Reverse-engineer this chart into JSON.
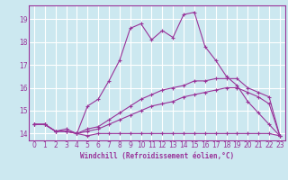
{
  "xlabel": "Windchill (Refroidissement éolien,°C)",
  "bg_color": "#cce8f0",
  "grid_color": "#ffffff",
  "line_color": "#993399",
  "xlim": [
    -0.5,
    23.5
  ],
  "ylim": [
    13.7,
    19.6
  ],
  "yticks": [
    14,
    15,
    16,
    17,
    18,
    19
  ],
  "xticks": [
    0,
    1,
    2,
    3,
    4,
    5,
    6,
    7,
    8,
    9,
    10,
    11,
    12,
    13,
    14,
    15,
    16,
    17,
    18,
    19,
    20,
    21,
    22,
    23
  ],
  "line1_x": [
    0,
    1,
    2,
    3,
    4,
    5,
    6,
    7,
    8,
    9,
    10,
    11,
    12,
    13,
    14,
    15,
    16,
    17,
    18,
    19,
    20,
    21,
    22,
    23
  ],
  "line1_y": [
    14.4,
    14.4,
    14.1,
    14.1,
    14.0,
    13.9,
    14.0,
    14.0,
    14.0,
    14.0,
    14.0,
    14.0,
    14.0,
    14.0,
    14.0,
    14.0,
    14.0,
    14.0,
    14.0,
    14.0,
    14.0,
    14.0,
    14.0,
    13.9
  ],
  "line2_x": [
    0,
    1,
    2,
    3,
    4,
    5,
    6,
    7,
    8,
    9,
    10,
    11,
    12,
    13,
    14,
    15,
    16,
    17,
    18,
    19,
    20,
    21,
    22,
    23
  ],
  "line2_y": [
    14.4,
    14.4,
    14.1,
    14.1,
    14.0,
    15.2,
    15.5,
    16.3,
    17.2,
    18.6,
    18.8,
    18.1,
    18.5,
    18.2,
    19.2,
    19.3,
    17.8,
    17.2,
    16.5,
    16.1,
    15.4,
    14.9,
    14.4,
    13.9
  ],
  "line3_x": [
    0,
    1,
    2,
    3,
    4,
    5,
    6,
    7,
    8,
    9,
    10,
    11,
    12,
    13,
    14,
    15,
    16,
    17,
    18,
    19,
    20,
    21,
    22,
    23
  ],
  "line3_y": [
    14.4,
    14.4,
    14.1,
    14.2,
    14.0,
    14.2,
    14.3,
    14.6,
    14.9,
    15.2,
    15.5,
    15.7,
    15.9,
    16.0,
    16.1,
    16.3,
    16.3,
    16.4,
    16.4,
    16.4,
    16.0,
    15.8,
    15.6,
    13.9
  ],
  "line4_x": [
    0,
    1,
    2,
    3,
    4,
    5,
    6,
    7,
    8,
    9,
    10,
    11,
    12,
    13,
    14,
    15,
    16,
    17,
    18,
    19,
    20,
    21,
    22,
    23
  ],
  "line4_y": [
    14.4,
    14.4,
    14.1,
    14.1,
    14.0,
    14.1,
    14.2,
    14.4,
    14.6,
    14.8,
    15.0,
    15.2,
    15.3,
    15.4,
    15.6,
    15.7,
    15.8,
    15.9,
    16.0,
    16.0,
    15.8,
    15.6,
    15.3,
    13.9
  ],
  "tick_fontsize": 5.5,
  "xlabel_fontsize": 5.5
}
